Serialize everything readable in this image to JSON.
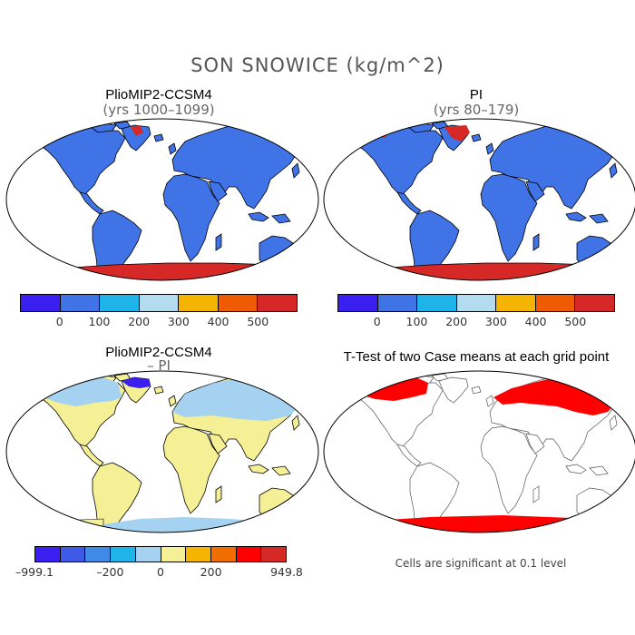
{
  "title": "SON SNOWICE (kg/m^2)",
  "panels": [
    {
      "title": "PlioMIP2-CCSM4",
      "subtitle": "(yrs 1000–1099)"
    },
    {
      "title": "PI",
      "subtitle": "(yrs 80–179)"
    },
    {
      "title": "PlioMIP2-CCSM4",
      "subtitle": "– PI"
    },
    {
      "title": "T-Test of two Case means at each grid point",
      "subtitle": ""
    }
  ],
  "colorbar_top": {
    "colors": [
      "#3b1ff0",
      "#3f73e6",
      "#1eb4ea",
      "#b4dcf0",
      "#f5b400",
      "#f05a00",
      "#d72828"
    ],
    "ticks": [
      "0",
      "100",
      "200",
      "300",
      "400",
      "500"
    ]
  },
  "colorbar_diff": {
    "colors": [
      "#3b1ff0",
      "#3f5ae6",
      "#3f8ce6",
      "#1eb4ea",
      "#a5d2f0",
      "#f5f096",
      "#f5b400",
      "#f06e00",
      "#ff0000",
      "#d72828"
    ],
    "ticks": [
      "–999.1",
      "–200",
      "0",
      "200",
      "949.8"
    ]
  },
  "significance_note": "Cells are significant at 0.1 level",
  "colors": {
    "land_blue": "#3f73e6",
    "antarctic_red": "#d72828",
    "diff_yellow": "#f5f096",
    "diff_lightblue": "#a5d2f0",
    "diff_darkblue": "#3b1ff0",
    "sig_red": "#ff0000"
  }
}
